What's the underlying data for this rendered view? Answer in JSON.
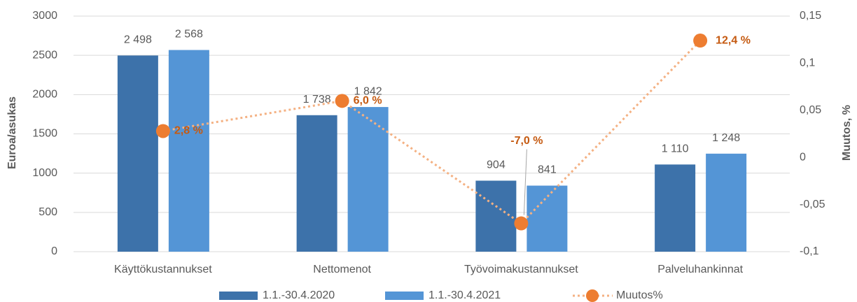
{
  "chart_data": {
    "type": "bar",
    "categories": [
      "Käyttökustannukset",
      "Nettomenot",
      "Työvoimakustannukset",
      "Palveluhankinnat"
    ],
    "series": [
      {
        "name": "1.1.-30.4.2020",
        "color": "#3d72aa",
        "values": [
          2498,
          1738,
          904,
          1110
        ],
        "value_labels": [
          "2 498",
          "1 738",
          "904",
          "1 110"
        ]
      },
      {
        "name": "1.1.-30.4.2021",
        "color": "#5495d6",
        "values": [
          2568,
          1842,
          841,
          1248
        ],
        "value_labels": [
          "2 568",
          "1 842",
          "841",
          "1 248"
        ]
      },
      {
        "name": "Muutos%",
        "type": "line",
        "axis": "y2",
        "color": "#ed7d31",
        "line_color": "#f4b183",
        "values": [
          0.028,
          0.06,
          -0.07,
          0.124
        ],
        "value_labels": [
          "2,8 %",
          "6,0 %",
          "-7,0 %",
          "12,4 %"
        ]
      }
    ],
    "ylabel": "Euroa/asukas",
    "y2label": "Muutos, %",
    "ylim": [
      0,
      3000
    ],
    "yticks": [
      0,
      500,
      1000,
      1500,
      2000,
      2500,
      3000
    ],
    "y2lim": [
      -0.1,
      0.15
    ],
    "y2ticks": [
      {
        "value": -0.1,
        "label": "-0,1"
      },
      {
        "value": -0.05,
        "label": "-0,05"
      },
      0,
      {
        "value": 0.05,
        "label": "0,05"
      },
      {
        "value": 0.1,
        "label": "0,1"
      },
      {
        "value": 0.15,
        "label": "0,15"
      }
    ],
    "grid": true,
    "legend": "bottom"
  }
}
